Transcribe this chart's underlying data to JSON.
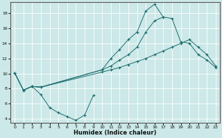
{
  "xlabel": "Humidex (Indice chaleur)",
  "bg_color": "#cce8e8",
  "line_color": "#1a6b6b",
  "grid_color": "#ffffff",
  "xlim": [
    -0.5,
    23.5
  ],
  "ylim": [
    3.5,
    19.5
  ],
  "yticks": [
    4,
    6,
    8,
    10,
    12,
    14,
    16,
    18
  ],
  "xticks": [
    0,
    1,
    2,
    3,
    4,
    5,
    6,
    7,
    8,
    9,
    10,
    11,
    12,
    13,
    14,
    15,
    16,
    17,
    18,
    19,
    20,
    21,
    22,
    23
  ],
  "line_peak": {
    "x": [
      0,
      1,
      2,
      3,
      10,
      11,
      12,
      13,
      14,
      15,
      16,
      17
    ],
    "y": [
      10.1,
      7.8,
      8.3,
      8.2,
      10.5,
      12.0,
      13.2,
      14.5,
      15.5,
      18.3,
      19.2,
      17.5
    ]
  },
  "line_mid": {
    "x": [
      0,
      1,
      2,
      3,
      10,
      11,
      12,
      13,
      14,
      15,
      16,
      17,
      18,
      19,
      20,
      21,
      22,
      23
    ],
    "y": [
      10.1,
      7.8,
      8.3,
      8.2,
      10.5,
      11.0,
      11.8,
      12.5,
      13.5,
      15.5,
      17.0,
      17.5,
      17.3,
      14.2,
      14.0,
      12.5,
      11.8,
      10.8
    ]
  },
  "line_straight": {
    "x": [
      0,
      1,
      2,
      3,
      10,
      11,
      12,
      13,
      14,
      15,
      16,
      17,
      18,
      19,
      20,
      21,
      22,
      23
    ],
    "y": [
      10.1,
      7.8,
      8.3,
      8.2,
      10.2,
      10.5,
      10.8,
      11.2,
      11.6,
      12.0,
      12.5,
      13.0,
      13.5,
      14.0,
      14.5,
      13.5,
      12.5,
      11.0
    ]
  },
  "line_dip": {
    "x": [
      1,
      2,
      3,
      4,
      5,
      6,
      7,
      8,
      9
    ],
    "y": [
      7.8,
      8.3,
      7.2,
      5.5,
      4.8,
      4.3,
      3.8,
      4.5,
      7.1
    ]
  }
}
